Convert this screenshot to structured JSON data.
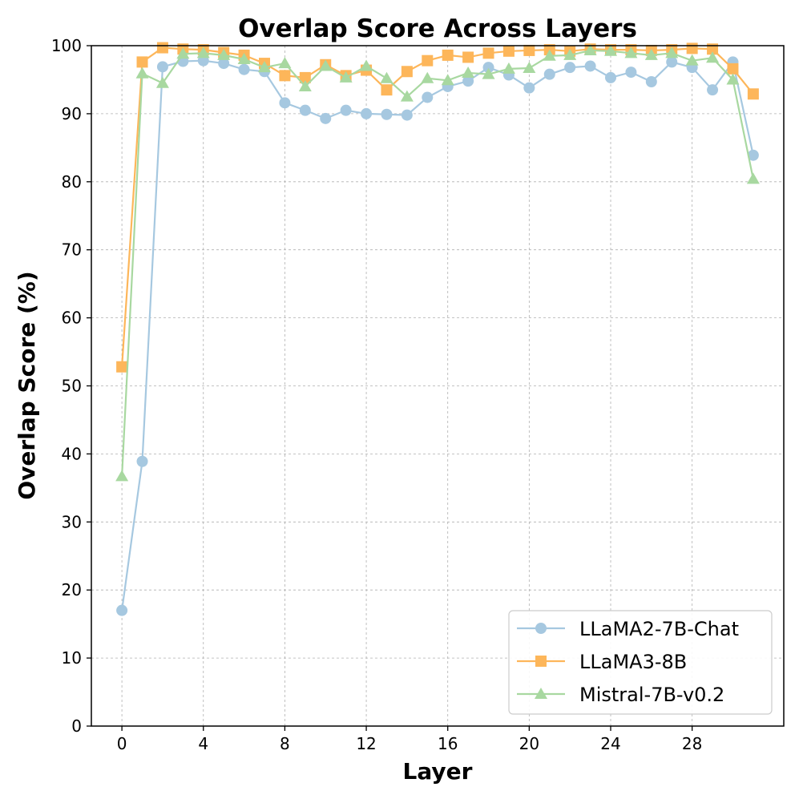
{
  "chart_data": {
    "type": "line",
    "title": "Overlap Score Across Layers",
    "xlabel": "Layer",
    "ylabel": "Overlap Score (%)",
    "xlim": [
      -1.5,
      32.5
    ],
    "ylim": [
      0,
      100
    ],
    "xticks": [
      0,
      4,
      8,
      12,
      16,
      20,
      24,
      28
    ],
    "yticks": [
      0,
      10,
      20,
      30,
      40,
      50,
      60,
      70,
      80,
      90,
      100
    ],
    "grid": true,
    "legend_position": "lower-right",
    "x": [
      0,
      1,
      2,
      3,
      4,
      5,
      6,
      7,
      8,
      9,
      10,
      11,
      12,
      13,
      14,
      15,
      16,
      17,
      18,
      19,
      20,
      21,
      22,
      23,
      24,
      25,
      26,
      27,
      28,
      29,
      30,
      31
    ],
    "series": [
      {
        "name": "LLaMA2-7B-Chat",
        "color": "#a6c8e0",
        "marker": "circle",
        "values": [
          17.0,
          38.9,
          96.9,
          97.7,
          97.8,
          97.4,
          96.5,
          96.2,
          91.6,
          90.5,
          89.3,
          90.5,
          90.0,
          89.9,
          89.8,
          92.4,
          94.0,
          94.8,
          96.8,
          95.7,
          93.8,
          95.8,
          96.8,
          97.0,
          95.3,
          96.1,
          94.7,
          97.6,
          96.8,
          93.5,
          97.6,
          83.9
        ]
      },
      {
        "name": "LLaMA3-8B",
        "color": "#fdb65a",
        "marker": "square",
        "values": [
          52.8,
          97.6,
          99.7,
          99.5,
          99.4,
          99.0,
          98.6,
          97.4,
          95.6,
          95.3,
          97.2,
          95.6,
          96.4,
          93.5,
          96.2,
          97.8,
          98.6,
          98.3,
          98.9,
          99.2,
          99.3,
          99.4,
          99.2,
          99.5,
          99.4,
          99.4,
          99.3,
          99.4,
          99.6,
          99.5,
          96.6,
          92.9
        ]
      },
      {
        "name": "Mistral-7B-v0.2",
        "color": "#a8d8a0",
        "marker": "triangle",
        "values": [
          36.7,
          95.9,
          94.5,
          98.8,
          98.9,
          98.6,
          98.0,
          96.8,
          97.4,
          94.0,
          97.0,
          95.3,
          97.0,
          95.2,
          92.5,
          95.2,
          94.9,
          96.0,
          95.8,
          96.6,
          96.7,
          98.5,
          98.6,
          99.3,
          99.2,
          98.9,
          98.6,
          98.9,
          97.8,
          98.2,
          95.0,
          80.4
        ]
      }
    ]
  }
}
